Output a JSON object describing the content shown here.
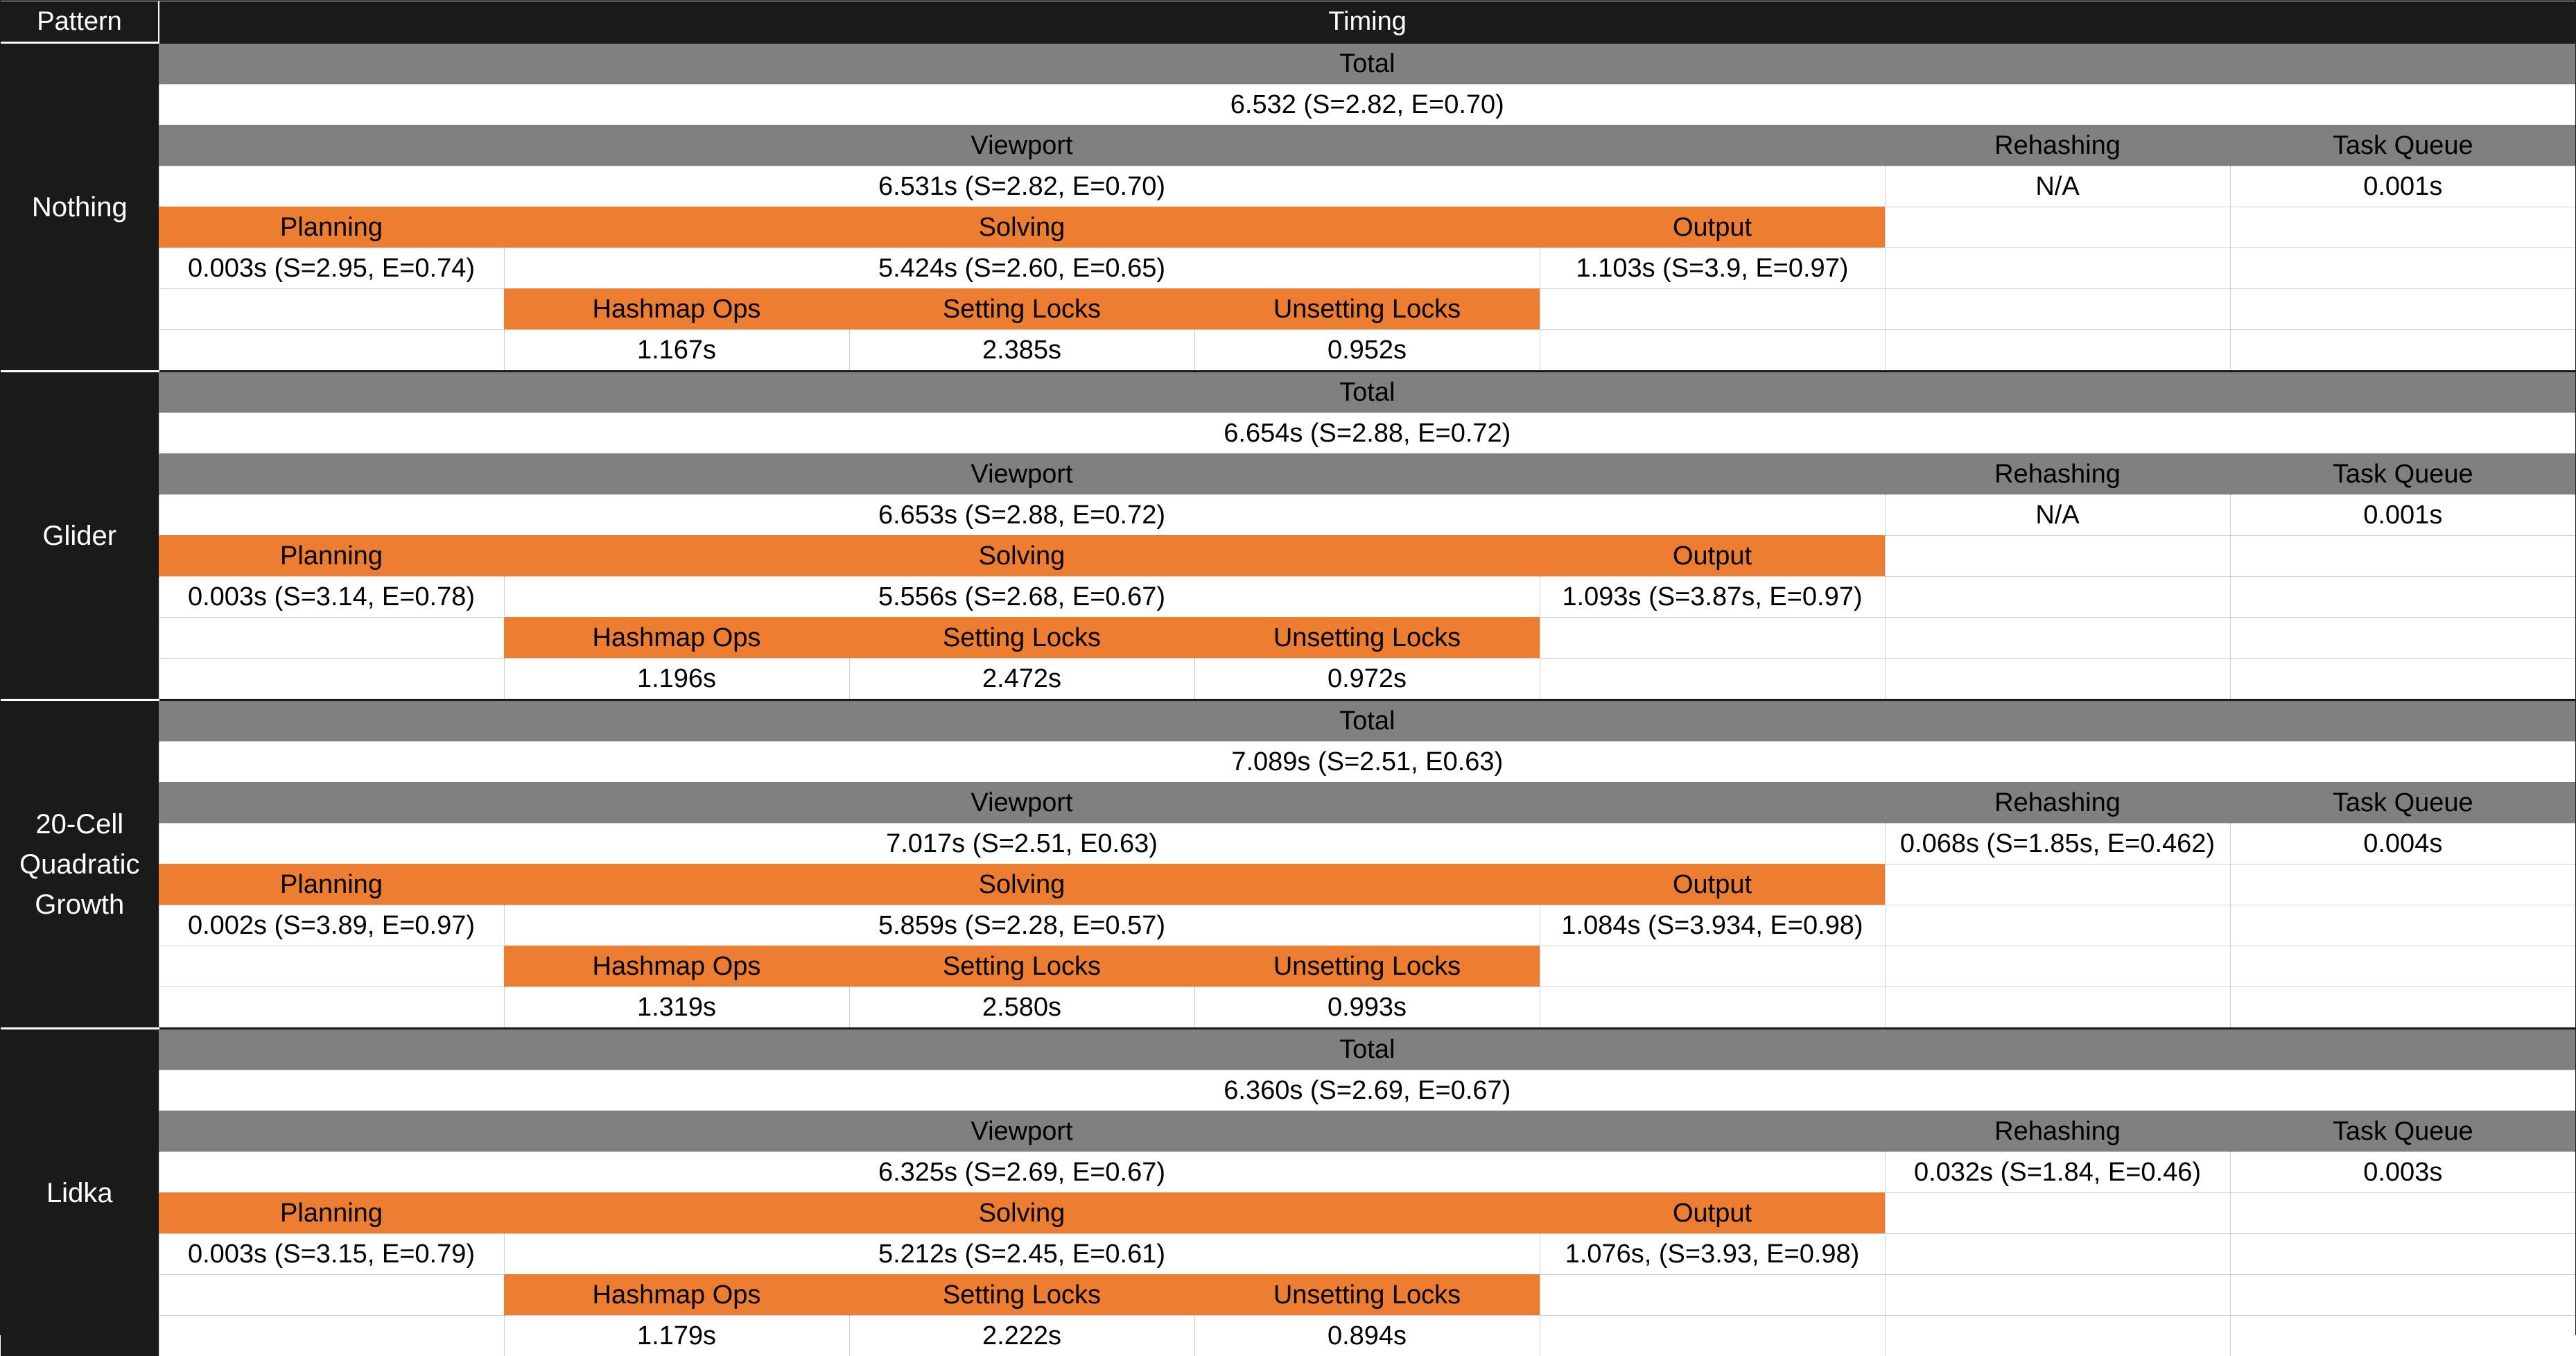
{
  "header": {
    "pattern": "Pattern",
    "timing": "Timing"
  },
  "labels": {
    "total": "Total",
    "viewport": "Viewport",
    "rehashing": "Rehashing",
    "task_queue": "Task Queue",
    "planning": "Planning",
    "solving": "Solving",
    "output": "Output",
    "hashmap_ops": "Hashmap Ops",
    "setting_locks": "Setting Locks",
    "unsetting_locks": "Unsetting Locks"
  },
  "colors": {
    "header_bg": "#1a1a1a",
    "section_gray": "#808080",
    "accent_orange": "#ed7d31"
  },
  "patterns": [
    {
      "name": "Nothing",
      "total": "6.532 (S=2.82, E=0.70)",
      "viewport": "6.531s (S=2.82, E=0.70)",
      "rehashing": "N/A",
      "task_queue": "0.001s",
      "planning": "0.003s (S=2.95, E=0.74)",
      "solving": "5.424s (S=2.60, E=0.65)",
      "output": "1.103s (S=3.9, E=0.97)",
      "hashmap_ops": "1.167s",
      "setting_locks": "2.385s",
      "unsetting_locks": "0.952s"
    },
    {
      "name": "Glider",
      "total": "6.654s (S=2.88, E=0.72)",
      "viewport": "6.653s (S=2.88, E=0.72)",
      "rehashing": "N/A",
      "task_queue": "0.001s",
      "planning": "0.003s (S=3.14, E=0.78)",
      "solving": "5.556s  (S=2.68, E=0.67)",
      "output": "1.093s (S=3.87s, E=0.97)",
      "hashmap_ops": "1.196s",
      "setting_locks": "2.472s",
      "unsetting_locks": "0.972s"
    },
    {
      "name": "20-Cell Quadratic Growth",
      "total": "7.089s (S=2.51, E0.63)",
      "viewport": "7.017s (S=2.51, E0.63)",
      "rehashing": "0.068s (S=1.85s, E=0.462)",
      "task_queue": "0.004s",
      "planning": "0.002s (S=3.89, E=0.97)",
      "solving": "5.859s (S=2.28, E=0.57)",
      "output": "1.084s (S=3.934, E=0.98)",
      "hashmap_ops": "1.319s",
      "setting_locks": "2.580s",
      "unsetting_locks": "0.993s"
    },
    {
      "name": "Lidka",
      "total": "6.360s (S=2.69, E=0.67)",
      "viewport": "6.325s (S=2.69, E=0.67)",
      "rehashing": "0.032s (S=1.84, E=0.46)",
      "task_queue": "0.003s",
      "planning": "0.003s (S=3.15, E=0.79)",
      "solving": "5.212s (S=2.45, E=0.61)",
      "output": "1.076s, (S=3.93, E=0.98)",
      "hashmap_ops": "1.179s",
      "setting_locks": "2.222s",
      "unsetting_locks": "0.894s"
    }
  ]
}
